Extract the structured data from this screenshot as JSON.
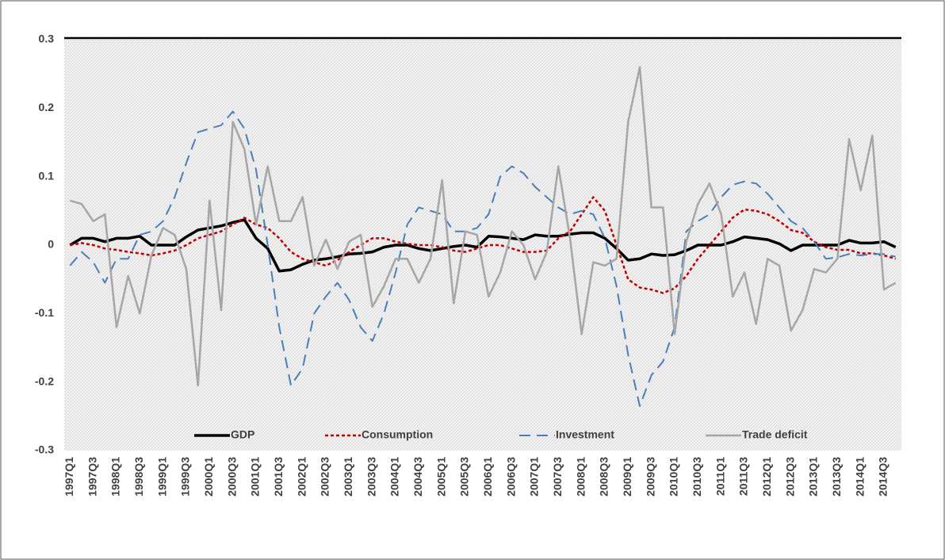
{
  "chart_data": {
    "type": "line",
    "categories": [
      "1997Q1",
      null,
      "1997Q3",
      null,
      "1998Q1",
      null,
      "1998Q3",
      null,
      "1999Q1",
      null,
      "1999Q3",
      null,
      "2000Q1",
      null,
      "2000Q3",
      null,
      "2001Q1",
      null,
      "2001Q3",
      null,
      "2002Q1",
      null,
      "2002Q3",
      null,
      "2003Q1",
      null,
      "2003Q3",
      null,
      "2004Q1",
      null,
      "2004Q3",
      null,
      "2005Q1",
      null,
      "2005Q3",
      null,
      "2006Q1",
      null,
      "2006Q3",
      null,
      "2007Q1",
      null,
      "2007Q3",
      null,
      "2008Q1",
      null,
      "2008Q3",
      null,
      "2009Q1",
      null,
      "2009Q3",
      null,
      "2010Q1",
      null,
      "2010Q3",
      null,
      "2011Q1",
      null,
      "2011Q3",
      null,
      "2012Q1",
      null,
      "2012Q3",
      null,
      "2013Q1",
      null,
      "2013Q3",
      null,
      "2014Q1",
      null,
      "2014Q3",
      null
    ],
    "series": [
      {
        "name": "GDP",
        "color": "#000000",
        "style": "solid",
        "width": 3.5,
        "values": [
          0,
          0.01,
          0.01,
          0.005,
          0.01,
          0.01,
          0.013,
          0,
          0,
          0,
          0.012,
          0.022,
          0.025,
          0.028,
          0.033,
          0.037,
          0.01,
          -0.005,
          -0.038,
          -0.036,
          -0.028,
          -0.022,
          -0.02,
          -0.017,
          -0.013,
          -0.012,
          -0.01,
          -0.003,
          0,
          0,
          -0.005,
          -0.008,
          -0.005,
          -0.002,
          0,
          -0.003,
          0.013,
          0.012,
          0.01,
          0.008,
          0.015,
          0.013,
          0.013,
          0.016,
          0.018,
          0.018,
          0.01,
          -0.005,
          -0.022,
          -0.02,
          -0.013,
          -0.015,
          -0.014,
          -0.008,
          0,
          0,
          0,
          0.005,
          0.012,
          0.01,
          0.008,
          0.002,
          -0.008,
          0,
          0,
          0,
          0,
          0.007,
          0.003,
          0.003,
          0.005,
          -0.003
        ]
      },
      {
        "name": "Consumption",
        "color": "#c00000",
        "style": "dotted",
        "width": 2.5,
        "values": [
          0,
          0.003,
          0,
          -0.005,
          -0.007,
          -0.01,
          -0.012,
          -0.015,
          -0.012,
          -0.008,
          0,
          0.01,
          0.015,
          0.02,
          0.03,
          0.04,
          0.03,
          0.025,
          0.01,
          -0.01,
          -0.02,
          -0.025,
          -0.03,
          -0.022,
          -0.01,
          0,
          0.01,
          0.01,
          0.005,
          0.002,
          0,
          0,
          -0.003,
          -0.008,
          -0.01,
          -0.005,
          0,
          0,
          -0.005,
          -0.01,
          -0.01,
          -0.008,
          0.01,
          0.02,
          0.045,
          0.07,
          0.05,
          0,
          -0.05,
          -0.062,
          -0.065,
          -0.07,
          -0.063,
          -0.045,
          -0.02,
          0,
          0.02,
          0.04,
          0.052,
          0.05,
          0.045,
          0.035,
          0.022,
          0.018,
          0.005,
          -0.003,
          -0.007,
          -0.007,
          -0.012,
          -0.012,
          -0.015,
          -0.02
        ]
      },
      {
        "name": "Investment",
        "color": "#4a7ebb",
        "style": "dashed",
        "width": 2,
        "values": [
          -0.03,
          -0.01,
          -0.025,
          -0.055,
          -0.02,
          -0.02,
          0.015,
          0.02,
          0.035,
          0.07,
          0.12,
          0.165,
          0.17,
          0.175,
          0.195,
          0.17,
          0.11,
          0,
          -0.12,
          -0.205,
          -0.18,
          -0.1,
          -0.075,
          -0.055,
          -0.08,
          -0.12,
          -0.14,
          -0.1,
          -0.04,
          0.03,
          0.055,
          0.05,
          0.045,
          0.02,
          0.02,
          0.025,
          0.045,
          0.1,
          0.115,
          0.105,
          0.085,
          0.07,
          0.055,
          0.045,
          0.05,
          0.045,
          0.01,
          -0.06,
          -0.16,
          -0.235,
          -0.19,
          -0.17,
          -0.12,
          0.02,
          0.035,
          0.045,
          0.07,
          0.088,
          0.093,
          0.09,
          0.075,
          0.055,
          0.035,
          0.025,
          0.005,
          -0.02,
          -0.018,
          -0.013,
          -0.015,
          -0.013,
          -0.013,
          -0.017
        ]
      },
      {
        "name": "Trade deficit",
        "color": "#a6a6a6",
        "style": "solid",
        "width": 2.5,
        "values": [
          0.065,
          0.06,
          0.035,
          0.045,
          -0.12,
          -0.045,
          -0.1,
          -0.015,
          0.025,
          0.015,
          -0.035,
          -0.205,
          0.065,
          -0.095,
          0.18,
          0.14,
          0.03,
          0.115,
          0.035,
          0.035,
          0.07,
          -0.03,
          0.008,
          -0.035,
          0.005,
          0.015,
          -0.09,
          -0.06,
          -0.02,
          -0.02,
          -0.055,
          -0.02,
          0.095,
          -0.085,
          0.02,
          0.015,
          -0.075,
          -0.04,
          0.02,
          0,
          -0.05,
          -0.01,
          0.115,
          0.01,
          -0.13,
          -0.025,
          -0.03,
          -0.02,
          0.18,
          0.26,
          0.055,
          0.055,
          -0.13,
          0.005,
          0.06,
          0.09,
          0.045,
          -0.075,
          -0.04,
          -0.115,
          -0.02,
          -0.03,
          -0.125,
          -0.095,
          -0.035,
          -0.04,
          -0.02,
          0.155,
          0.08,
          0.16,
          -0.065,
          -0.055
        ]
      }
    ],
    "ylim": [
      -0.3,
      0.3
    ],
    "yticks": [
      {
        "value": 0.3,
        "label": "0.3"
      },
      {
        "value": 0.2,
        "label": "0.2"
      },
      {
        "value": 0.1,
        "label": "0.1"
      },
      0,
      {
        "value": -0.1,
        "label": "-0.1"
      },
      {
        "value": -0.2,
        "label": "-0.2"
      },
      {
        "value": -0.3,
        "label": "-0.3"
      }
    ],
    "grid": false,
    "legend": "bottom"
  }
}
